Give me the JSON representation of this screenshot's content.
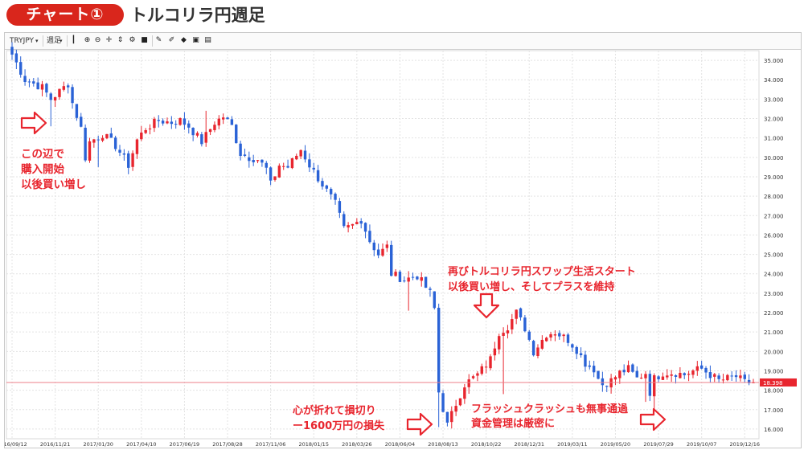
{
  "header": {
    "badge": "チャート①",
    "title": "トルコリラ円週足"
  },
  "toolbar": {
    "symbol": "TRYJPY",
    "timeframe": "週足",
    "icons": [
      "candle-type-icon",
      "zoom-in-icon",
      "zoom-out-icon",
      "crosshair-icon",
      "scale-icon",
      "settings-icon",
      "save-icon",
      "pencil-icon",
      "brush-icon",
      "magnet-icon",
      "camera-icon",
      "layout-icon"
    ]
  },
  "colors": {
    "up": "#e8252e",
    "down": "#2a62d6",
    "price_line": "#ec7f8a",
    "price_tag": "#e8252e"
  },
  "current_price_label": "18.398",
  "annotations": [
    {
      "id": "buy-start",
      "lines": [
        "この辺で",
        "購入開始",
        "以後買い増し"
      ]
    },
    {
      "id": "swap-restart",
      "lines": [
        "再びトルコリラ円スワップ生活スタート",
        "以後買い増し、そしてプラスを維持"
      ]
    },
    {
      "id": "loss",
      "lines": [
        "心が折れて損切り",
        "ー1600万円の損失"
      ]
    },
    {
      "id": "flash-crash",
      "lines": [
        "フラッシュクラッシュも無事通過",
        "資金管理は厳密に"
      ]
    }
  ],
  "chart_data": {
    "type": "candlestick",
    "title": "トルコリラ円週足",
    "xlabel": "",
    "ylabel": "",
    "ylim": [
      15.5,
      35.5
    ],
    "yticks": [
      16.0,
      17.0,
      18.0,
      19.0,
      20.0,
      21.0,
      22.0,
      23.0,
      24.0,
      25.0,
      26.0,
      27.0,
      28.0,
      29.0,
      30.0,
      31.0,
      32.0,
      33.0,
      34.0,
      35.0
    ],
    "xticks": [
      "2016/09/12",
      "2016/11/21",
      "2017/01/30",
      "2017/04/10",
      "2017/06/19",
      "2017/08/28",
      "2017/11/06",
      "2018/01/15",
      "2018/03/26",
      "2018/06/04",
      "2018/08/13",
      "2018/10/22",
      "2018/12/31",
      "2019/03/11",
      "2019/05/20",
      "2019/07/29",
      "2019/10/07",
      "2019/12/16"
    ],
    "grid": true,
    "current_price": 18.4,
    "weeks_per_tick": 10,
    "close_path": [
      [
        0,
        35.3
      ],
      [
        3,
        34.0
      ],
      [
        7,
        33.6
      ],
      [
        9,
        33.0
      ],
      [
        13,
        33.8
      ],
      [
        14,
        32.8
      ],
      [
        16,
        31.5
      ],
      [
        17,
        30.0
      ],
      [
        18,
        30.8
      ],
      [
        21,
        31.2
      ],
      [
        24,
        30.6
      ],
      [
        27,
        29.6
      ],
      [
        29,
        30.9
      ],
      [
        31,
        31.5
      ],
      [
        34,
        31.9
      ],
      [
        37,
        31.8
      ],
      [
        39,
        31.9
      ],
      [
        41,
        31.6
      ],
      [
        44,
        30.8
      ],
      [
        47,
        31.8
      ],
      [
        49,
        32.1
      ],
      [
        51,
        31.6
      ],
      [
        53,
        30.2
      ],
      [
        55,
        30.0
      ],
      [
        57,
        29.9
      ],
      [
        59,
        29.4
      ],
      [
        60,
        28.6
      ],
      [
        62,
        29.6
      ],
      [
        64,
        29.5
      ],
      [
        67,
        30.4
      ],
      [
        69,
        29.6
      ],
      [
        72,
        28.6
      ],
      [
        75,
        27.6
      ],
      [
        77,
        26.3
      ],
      [
        79,
        26.5
      ],
      [
        81,
        26.8
      ],
      [
        83,
        25.7
      ],
      [
        85,
        25.0
      ],
      [
        87,
        25.4
      ],
      [
        88,
        24.0
      ],
      [
        91,
        23.7
      ],
      [
        94,
        23.9
      ],
      [
        97,
        23.0
      ],
      [
        98,
        22.2
      ],
      [
        99,
        17.9
      ],
      [
        101,
        16.2
      ],
      [
        103,
        17.3
      ],
      [
        105,
        18.3
      ],
      [
        108,
        18.8
      ],
      [
        111,
        19.6
      ],
      [
        113,
        21.0
      ],
      [
        115,
        21.3
      ],
      [
        117,
        22.0
      ],
      [
        119,
        21.2
      ],
      [
        121,
        20.0
      ],
      [
        123,
        20.6
      ],
      [
        124,
        20.9
      ],
      [
        126,
        21.0
      ],
      [
        129,
        20.6
      ],
      [
        131,
        20.1
      ],
      [
        133,
        19.4
      ],
      [
        135,
        19.1
      ],
      [
        136,
        18.6
      ],
      [
        137,
        18.3
      ],
      [
        139,
        18.5
      ],
      [
        141,
        18.9
      ],
      [
        143,
        19.1
      ],
      [
        145,
        18.6
      ],
      [
        147,
        18.9
      ],
      [
        148,
        17.9
      ],
      [
        149,
        18.6
      ],
      [
        151,
        18.9
      ],
      [
        154,
        18.9
      ],
      [
        156,
        18.8
      ],
      [
        158,
        19.0
      ],
      [
        160,
        19.1
      ],
      [
        162,
        18.8
      ],
      [
        164,
        18.5
      ],
      [
        166,
        18.6
      ],
      [
        168,
        18.7
      ],
      [
        170,
        18.4
      ],
      [
        172,
        18.4
      ]
    ],
    "spikes": [
      [
        9,
        31.6
      ],
      [
        15,
        32.6
      ],
      [
        20,
        29.5
      ],
      [
        28,
        29.3
      ],
      [
        45,
        32.4
      ],
      [
        92,
        22.1
      ],
      [
        99,
        16.1
      ],
      [
        114,
        17.8
      ],
      [
        147,
        17.4
      ],
      [
        149,
        16.3
      ]
    ]
  }
}
